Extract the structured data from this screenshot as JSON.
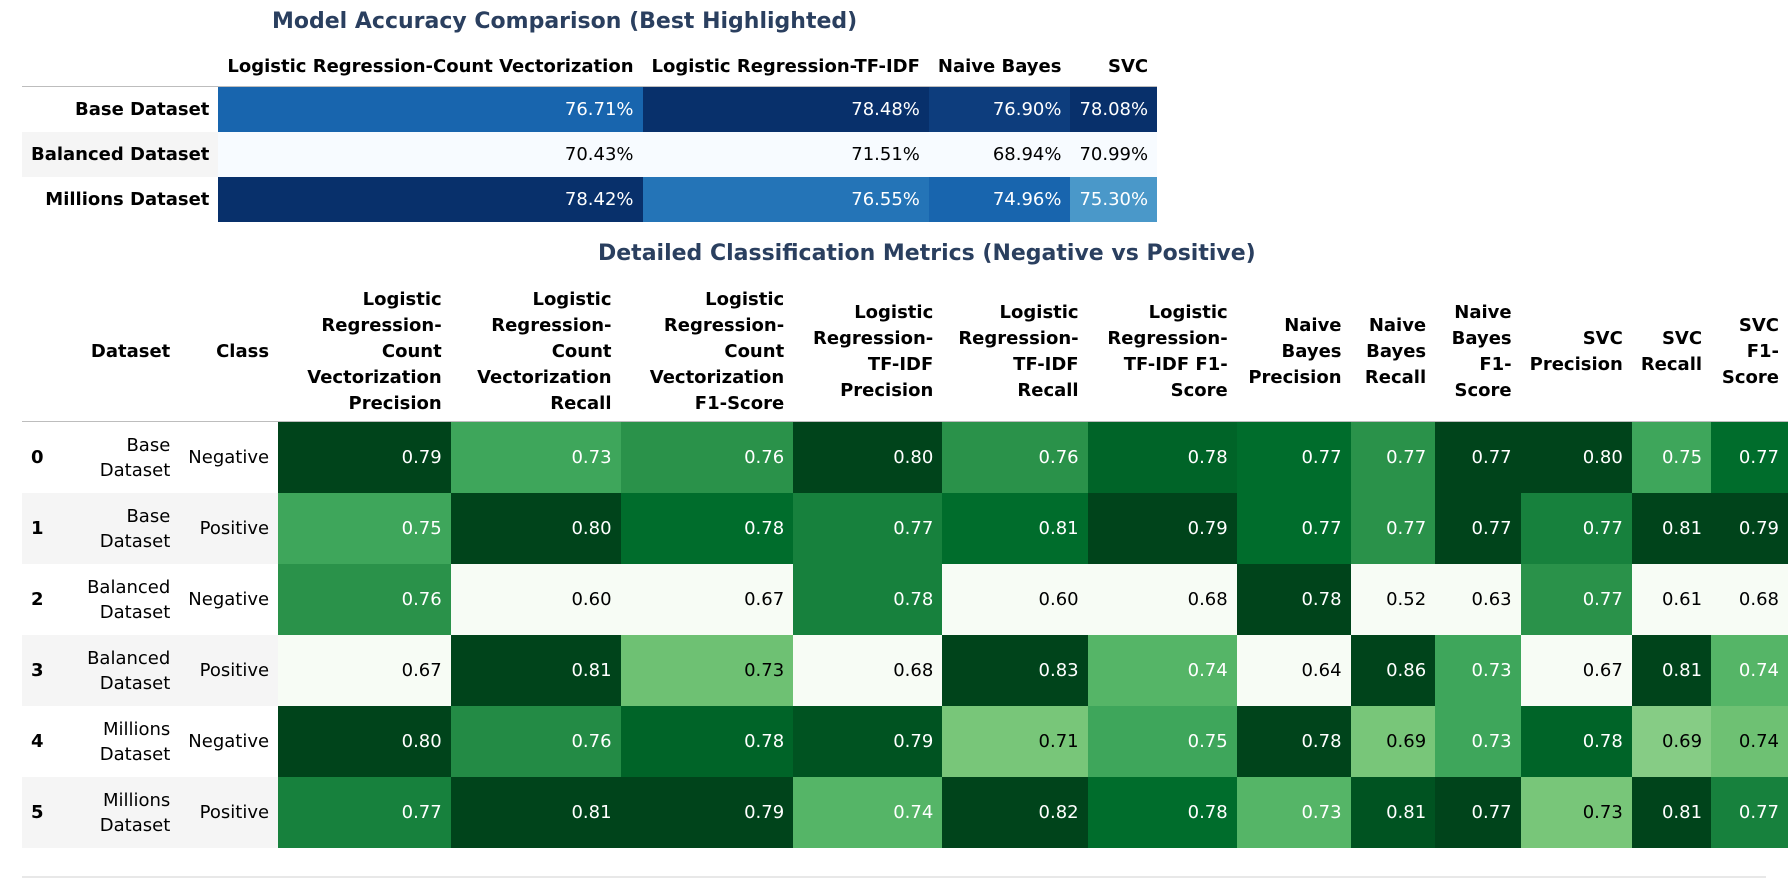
{
  "accuracy": {
    "title": "Model Accuracy Comparison (Best Highlighted)",
    "columns": [
      "Logistic Regression-Count Vectorization",
      "Logistic Regression-TF-IDF",
      "Naive Bayes",
      "SVC"
    ],
    "rows": [
      {
        "label": "Base Dataset",
        "values": [
          "76.71%",
          "78.48%",
          "76.90%",
          "78.08%"
        ],
        "bg": [
          "#1865ae",
          "#08306b",
          "#0d3d7d",
          "#08306b"
        ],
        "fg": [
          "#ffffff",
          "#ffffff",
          "#ffffff",
          "#ffffff"
        ]
      },
      {
        "label": "Balanced Dataset",
        "values": [
          "70.43%",
          "71.51%",
          "68.94%",
          "70.99%"
        ],
        "bg": [
          "#f7fbff",
          "#f7fbff",
          "#f7fbff",
          "#f7fbff"
        ],
        "fg": [
          "#000000",
          "#000000",
          "#000000",
          "#000000"
        ]
      },
      {
        "label": "Millions Dataset",
        "values": [
          "78.42%",
          "76.55%",
          "74.96%",
          "75.30%"
        ],
        "bg": [
          "#08306b",
          "#2474b7",
          "#1865ae",
          "#4a98c9"
        ],
        "fg": [
          "#ffffff",
          "#ffffff",
          "#ffffff",
          "#ffffff"
        ]
      }
    ]
  },
  "metrics": {
    "title": "Detailed Classification Metrics (Negative vs Positive)",
    "columns": [
      "Dataset",
      "Class",
      "Logistic Regression-Count Vectorization Precision",
      "Logistic Regression-Count Vectorization Recall",
      "Logistic Regression-Count Vectorization F1-Score",
      "Logistic Regression-TF-IDF Precision",
      "Logistic Regression-TF-IDF Recall",
      "Logistic Regression-TF-IDF F1-Score",
      "Naive Bayes Precision",
      "Naive Bayes Recall",
      "Naive Bayes F1-Score",
      "SVC Precision",
      "SVC Recall",
      "SVC F1-Score"
    ],
    "rows": [
      {
        "index": "0",
        "dataset": "Base Dataset",
        "class": "Negative",
        "values": [
          "0.79",
          "0.73",
          "0.76",
          "0.80",
          "0.76",
          "0.78",
          "0.77",
          "0.77",
          "0.77",
          "0.80",
          "0.75",
          "0.77"
        ],
        "bg": [
          "#00441b",
          "#3ea65b",
          "#2a924a",
          "#00441b",
          "#2a924a",
          "#006428",
          "#006d2c",
          "#2a924a",
          "#00441b",
          "#00441b",
          "#3ea65b",
          "#006d2c"
        ]
      },
      {
        "index": "1",
        "dataset": "Base Dataset",
        "class": "Positive",
        "values": [
          "0.75",
          "0.80",
          "0.78",
          "0.77",
          "0.81",
          "0.79",
          "0.77",
          "0.77",
          "0.77",
          "0.77",
          "0.81",
          "0.79"
        ],
        "bg": [
          "#3ea65b",
          "#00441b",
          "#006d2c",
          "#17813d",
          "#006d2c",
          "#00441b",
          "#006d2c",
          "#2a924a",
          "#00441b",
          "#17813d",
          "#00441b",
          "#00441b"
        ]
      },
      {
        "index": "2",
        "dataset": "Balanced Dataset",
        "class": "Negative",
        "values": [
          "0.76",
          "0.60",
          "0.67",
          "0.78",
          "0.60",
          "0.68",
          "0.78",
          "0.52",
          "0.63",
          "0.77",
          "0.61",
          "0.68"
        ],
        "bg": [
          "#2a924a",
          "#f7fcf5",
          "#f7fcf5",
          "#17813d",
          "#f7fcf5",
          "#f7fcf5",
          "#00441b",
          "#f7fcf5",
          "#f7fcf5",
          "#2a924a",
          "#f7fcf5",
          "#f7fcf5"
        ]
      },
      {
        "index": "3",
        "dataset": "Balanced Dataset",
        "class": "Positive",
        "values": [
          "0.67",
          "0.81",
          "0.73",
          "0.68",
          "0.83",
          "0.74",
          "0.64",
          "0.86",
          "0.73",
          "0.67",
          "0.81",
          "0.74"
        ],
        "bg": [
          "#f7fcf5",
          "#00441b",
          "#6ec173",
          "#f7fcf5",
          "#00441b",
          "#55b567",
          "#f7fcf5",
          "#00441b",
          "#3ea65b",
          "#f7fcf5",
          "#00441b",
          "#55b567"
        ]
      },
      {
        "index": "4",
        "dataset": "Millions Dataset",
        "class": "Negative",
        "values": [
          "0.80",
          "0.76",
          "0.78",
          "0.79",
          "0.71",
          "0.75",
          "0.78",
          "0.69",
          "0.73",
          "0.78",
          "0.69",
          "0.74"
        ],
        "bg": [
          "#00441b",
          "#238b45",
          "#006428",
          "#005321",
          "#78c679",
          "#3ea65b",
          "#00441b",
          "#78c679",
          "#3ea65b",
          "#006428",
          "#86cc85",
          "#6ec173"
        ]
      },
      {
        "index": "5",
        "dataset": "Millions Dataset",
        "class": "Positive",
        "values": [
          "0.77",
          "0.81",
          "0.79",
          "0.74",
          "0.82",
          "0.78",
          "0.73",
          "0.81",
          "0.77",
          "0.73",
          "0.81",
          "0.77"
        ],
        "bg": [
          "#17813d",
          "#00441b",
          "#00441b",
          "#55b567",
          "#00441b",
          "#006d2c",
          "#55b567",
          "#005321",
          "#00441b",
          "#78c679",
          "#00441b",
          "#17813d"
        ]
      }
    ]
  }
}
